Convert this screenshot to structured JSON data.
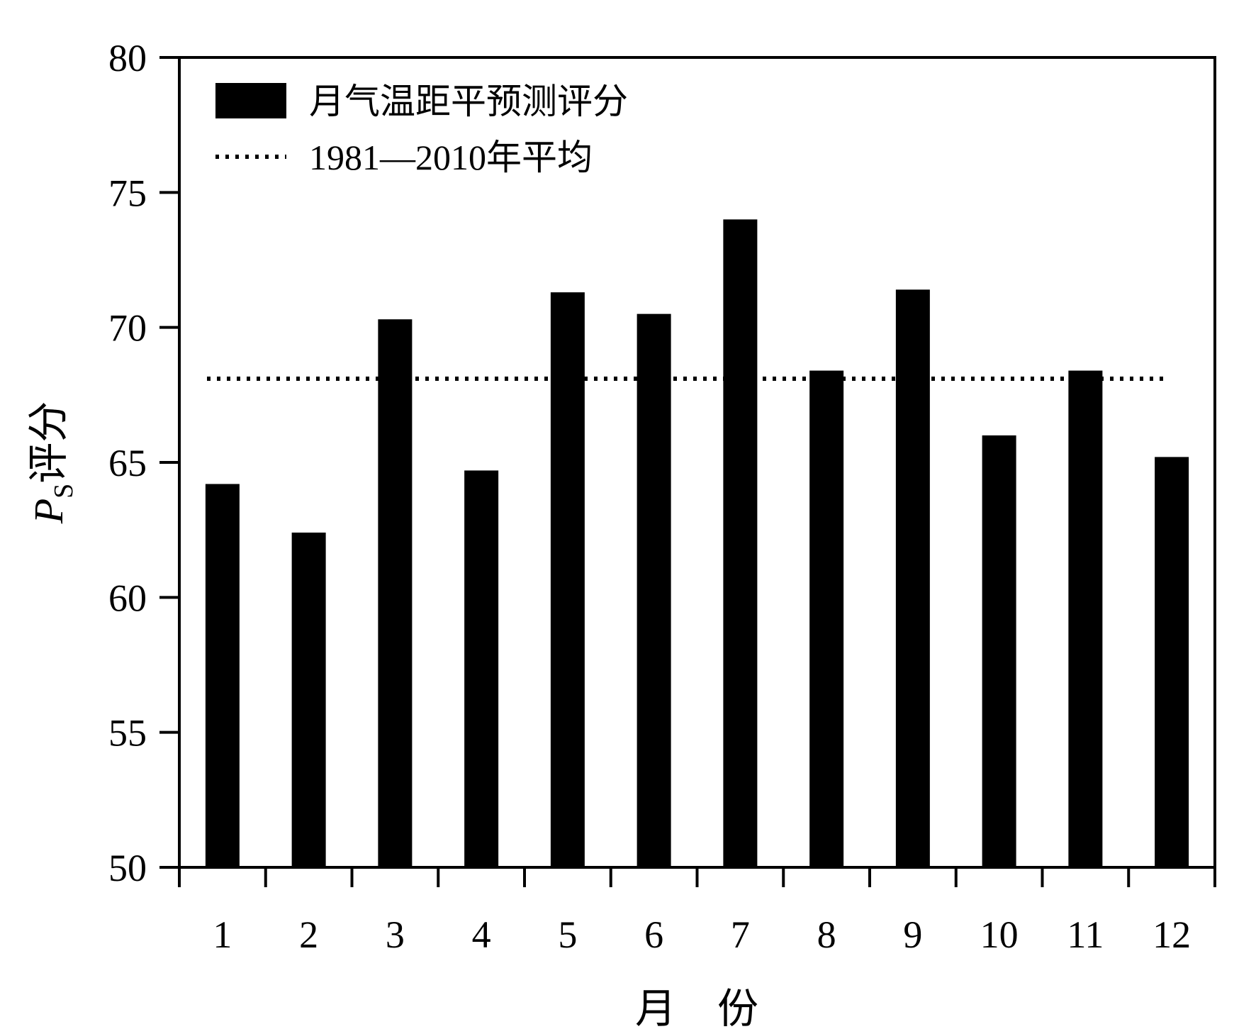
{
  "chart_data": {
    "type": "bar",
    "title": "",
    "xlabel": "月　份",
    "ylabel_main": "P",
    "ylabel_sub": "S",
    "ylabel_suffix": "评分",
    "categories": [
      "1",
      "2",
      "3",
      "4",
      "5",
      "6",
      "7",
      "8",
      "9",
      "10",
      "11",
      "12"
    ],
    "series": [
      {
        "name": "月气温距平预测评分",
        "color": "#000000",
        "values": [
          64.2,
          62.4,
          70.3,
          64.7,
          71.3,
          70.5,
          74.0,
          68.4,
          71.4,
          66.0,
          68.4,
          65.2
        ]
      }
    ],
    "reference_line": {
      "name": "1981—2010年平均",
      "value": 68.1,
      "style": "dotted",
      "color": "#000000"
    },
    "ylim": [
      50,
      80
    ],
    "yticks": [
      "50",
      "55",
      "60",
      "65",
      "70",
      "75",
      "80"
    ],
    "grid": false,
    "legend_position": "top-left"
  }
}
